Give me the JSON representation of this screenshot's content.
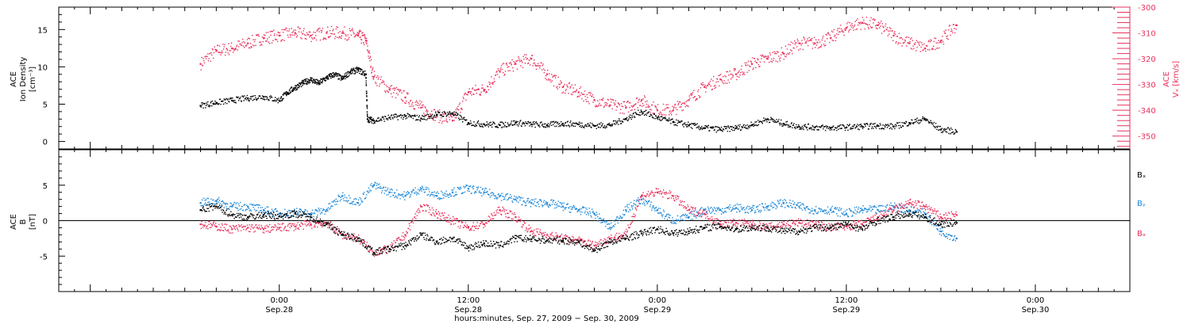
{
  "chart_data": [
    {
      "type": "scatter",
      "panel": "top",
      "ylabel_left": [
        "ACE",
        "Ion Density",
        "[cm⁻³]"
      ],
      "ylabel_right": [
        "ACE",
        "Vₓ [km/s]"
      ],
      "left_ylim": [
        -1,
        18
      ],
      "left_ticks": [
        "0",
        "5",
        "10",
        "15"
      ],
      "left_tick_values": [
        0,
        5,
        10,
        15
      ],
      "right_ylim": [
        -355,
        -300
      ],
      "right_ticks": [
        "-300",
        "-310",
        "-320",
        "-330",
        "-340",
        "-350"
      ],
      "right_tick_values": [
        -300,
        -310,
        -320,
        -330,
        -340,
        -350
      ],
      "series": [
        {
          "name": "",
          "axis": "left",
          "color": "#000000",
          "x": [
            -5,
            -4,
            -3,
            -2,
            -1,
            0,
            0.5,
            1,
            1.5,
            2,
            2.5,
            3,
            3.5,
            4,
            4.5,
            5,
            5.5,
            5.6,
            6,
            7,
            8,
            9,
            10,
            11,
            12,
            13,
            14,
            15,
            16,
            17,
            18,
            19,
            20,
            21,
            22,
            23,
            24,
            25,
            26,
            27,
            28,
            29,
            30,
            31,
            32,
            33,
            34,
            35,
            36,
            37,
            38,
            39,
            40,
            41,
            42,
            43
          ],
          "y": [
            4.8,
            5.2,
            5.5,
            5.8,
            6.0,
            5.5,
            6.5,
            7.2,
            7.8,
            8.3,
            7.8,
            8.5,
            9.0,
            8.4,
            9.3,
            9.6,
            9.0,
            3.0,
            2.8,
            3.2,
            3.4,
            3.1,
            3.6,
            3.8,
            2.5,
            2.3,
            2.2,
            2.5,
            2.3,
            2.2,
            2.4,
            2.3,
            2.1,
            2.2,
            3.0,
            4.0,
            3.2,
            2.6,
            2.2,
            1.8,
            1.6,
            1.8,
            2.2,
            3.0,
            2.4,
            2.0,
            1.9,
            1.8,
            1.9,
            2.0,
            2.1,
            2.0,
            2.5,
            3.0,
            1.6,
            1.3
          ]
        },
        {
          "name": "",
          "axis": "right",
          "color": "#e8325c",
          "x": [
            -5,
            -4,
            -3,
            -2,
            -1,
            0,
            1,
            2,
            3,
            4,
            5,
            5.5,
            6,
            7,
            8,
            9,
            10,
            11,
            12,
            13,
            14,
            15,
            16,
            17,
            18,
            19,
            20,
            21,
            22,
            23,
            24,
            25,
            26,
            27,
            28,
            29,
            30,
            31,
            32,
            33,
            34,
            35,
            36,
            37,
            38,
            39,
            40,
            41,
            42,
            43
          ],
          "y": [
            -322,
            -317,
            -316,
            -314,
            -312,
            -311,
            -310,
            -311,
            -310,
            -310,
            -311,
            -313,
            -327,
            -332,
            -335,
            -339,
            -342,
            -344,
            -333,
            -332,
            -325,
            -322,
            -320,
            -326,
            -331,
            -333,
            -336,
            -338,
            -339,
            -336,
            -340,
            -340,
            -336,
            -331,
            -328,
            -326,
            -322,
            -320,
            -318,
            -314,
            -314,
            -312,
            -308,
            -306,
            -307,
            -311,
            -314,
            -316,
            -313,
            -307
          ]
        }
      ]
    },
    {
      "type": "scatter",
      "panel": "bottom",
      "ylabel_left": [
        "ACE",
        "B",
        "[nT]"
      ],
      "ylim": [
        -10,
        10
      ],
      "left_ticks": [
        "5",
        "0",
        "-5"
      ],
      "left_tick_values": [
        5,
        0,
        -5
      ],
      "zero_line": 0,
      "legend": [
        "Bₓ",
        "Bᵧ",
        "Bₔ"
      ],
      "legend_placement": "right",
      "series": [
        {
          "name": "Bₓ",
          "color": "#000000",
          "x": [
            -5,
            -4,
            -3,
            -2,
            -1,
            0,
            1,
            2,
            3,
            4,
            5,
            6,
            7,
            8,
            9,
            10,
            11,
            12,
            13,
            14,
            15,
            16,
            17,
            18,
            19,
            20,
            21,
            22,
            23,
            24,
            25,
            26,
            27,
            28,
            29,
            30,
            31,
            32,
            33,
            34,
            35,
            36,
            37,
            38,
            39,
            40,
            41,
            42,
            43
          ],
          "y": [
            1.5,
            2.0,
            0.8,
            0.5,
            0.8,
            0.6,
            1.0,
            0.5,
            -0.5,
            -2.0,
            -2.5,
            -4.5,
            -4.0,
            -3.5,
            -2.0,
            -3.0,
            -2.5,
            -3.8,
            -3.2,
            -3.5,
            -2.5,
            -2.6,
            -2.8,
            -2.8,
            -3.0,
            -4.2,
            -3.0,
            -2.5,
            -1.8,
            -1.2,
            -1.8,
            -1.5,
            -1.0,
            -0.8,
            -1.2,
            -1.0,
            -1.0,
            -1.5,
            -1.5,
            -1.0,
            -1.0,
            -0.5,
            -1.2,
            0.0,
            0.5,
            1.0,
            0.5,
            -0.5,
            -0.3
          ]
        },
        {
          "name": "Bᵧ",
          "color": "#1e88d8",
          "x": [
            -5,
            -4,
            -3,
            -2,
            -1,
            0,
            1,
            2,
            3,
            4,
            5,
            6,
            7,
            8,
            9,
            10,
            11,
            12,
            13,
            14,
            15,
            16,
            17,
            18,
            19,
            20,
            21,
            22,
            23,
            24,
            25,
            26,
            27,
            28,
            29,
            30,
            31,
            32,
            33,
            34,
            35,
            36,
            37,
            38,
            39,
            40,
            41,
            42,
            43
          ],
          "y": [
            2.5,
            2.8,
            2.0,
            2.0,
            1.5,
            1.0,
            1.2,
            1.0,
            1.5,
            3.5,
            2.5,
            5.0,
            4.0,
            3.5,
            4.5,
            3.5,
            4.0,
            4.5,
            4.0,
            3.5,
            3.0,
            2.5,
            2.5,
            2.0,
            1.5,
            1.0,
            -1.0,
            1.5,
            3.0,
            1.5,
            0.0,
            0.5,
            1.5,
            1.5,
            1.8,
            1.5,
            2.0,
            2.5,
            2.0,
            1.5,
            1.5,
            1.0,
            1.5,
            1.5,
            2.0,
            1.5,
            1.0,
            -1.5,
            -2.5
          ]
        },
        {
          "name": "Bₔ",
          "color": "#e8325c",
          "x": [
            -5,
            -4,
            -3,
            -2,
            -1,
            0,
            1,
            2,
            3,
            4,
            5,
            6,
            7,
            8,
            9,
            10,
            11,
            12,
            13,
            14,
            15,
            16,
            17,
            18,
            19,
            20,
            21,
            22,
            23,
            24,
            25,
            26,
            27,
            28,
            29,
            30,
            31,
            32,
            33,
            34,
            35,
            36,
            37,
            38,
            39,
            40,
            41,
            42,
            43
          ],
          "y": [
            -0.5,
            -0.8,
            -1.2,
            -1.0,
            -1.2,
            -1.0,
            -0.8,
            -0.5,
            -0.3,
            -2.0,
            -2.5,
            -4.5,
            -4.0,
            -2.0,
            2.0,
            1.0,
            0.0,
            -1.0,
            -0.5,
            1.5,
            0.5,
            -1.5,
            -2.0,
            -2.5,
            -2.8,
            -3.5,
            -2.5,
            -2.0,
            3.5,
            4.0,
            3.5,
            1.5,
            1.0,
            -0.5,
            -0.3,
            -0.5,
            -1.0,
            -0.5,
            -0.3,
            -0.5,
            -1.0,
            -0.8,
            -0.5,
            0.5,
            1.5,
            2.5,
            2.0,
            0.5,
            0.8
          ]
        }
      ]
    }
  ],
  "x_axis": {
    "range_hours": [
      -14,
      54
    ],
    "major_ticks": [
      {
        "hour": 0,
        "time": "0:00",
        "date": "Sep.28"
      },
      {
        "hour": 12,
        "time": "12:00",
        "date": "Sep.28"
      },
      {
        "hour": 24,
        "time": "0:00",
        "date": "Sep.29"
      },
      {
        "hour": 36,
        "time": "12:00",
        "date": "Sep.29"
      },
      {
        "hour": 48,
        "time": "0:00",
        "date": "Sep.30"
      }
    ],
    "title": "hours:minutes, Sep. 27, 2009 − Sep. 30, 2009"
  },
  "colors": {
    "black": "#000000",
    "red": "#e8325c",
    "blue": "#1e88d8",
    "axis": "#000000"
  }
}
